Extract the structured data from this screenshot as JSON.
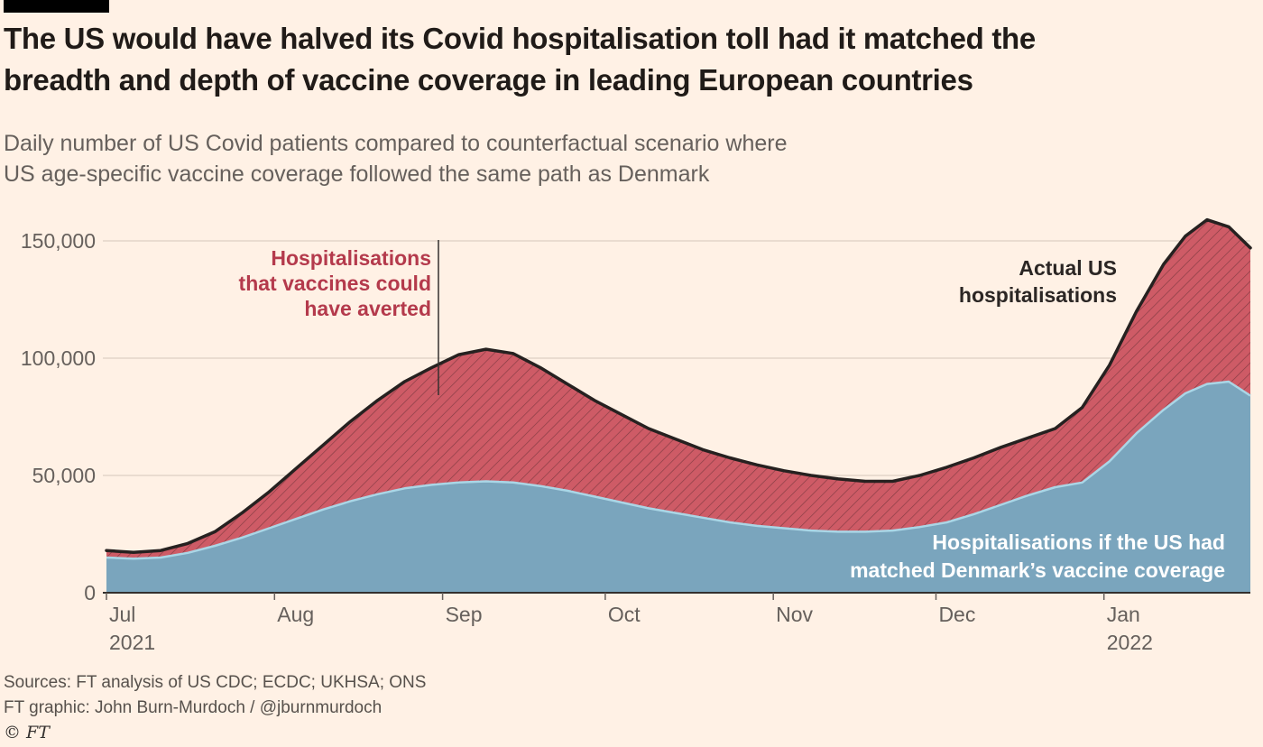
{
  "header": {
    "title_lines": [
      "The US would have halved its Covid hospitalisation toll had it matched the",
      "breadth and depth of vaccine coverage in leading European countries"
    ],
    "subtitle_lines": [
      "Daily number of US Covid patients compared to counterfactual scenario where",
      "US age-specific vaccine coverage followed the same path as Denmark"
    ]
  },
  "chart_data": {
    "type": "area",
    "title": "Daily number of US Covid patients compared to counterfactual scenario where US age-specific vaccine coverage followed the same path as Denmark",
    "x": [
      "2021-07-01",
      "2021-07-06",
      "2021-07-11",
      "2021-07-16",
      "2021-07-21",
      "2021-07-26",
      "2021-07-31",
      "2021-08-05",
      "2021-08-10",
      "2021-08-15",
      "2021-08-20",
      "2021-08-25",
      "2021-08-30",
      "2021-09-04",
      "2021-09-09",
      "2021-09-14",
      "2021-09-19",
      "2021-09-24",
      "2021-09-29",
      "2021-10-04",
      "2021-10-09",
      "2021-10-14",
      "2021-10-19",
      "2021-10-24",
      "2021-10-29",
      "2021-11-03",
      "2021-11-08",
      "2021-11-13",
      "2021-11-18",
      "2021-11-23",
      "2021-11-28",
      "2021-12-03",
      "2021-12-08",
      "2021-12-13",
      "2021-12-18",
      "2021-12-23",
      "2021-12-28",
      "2022-01-02",
      "2022-01-07",
      "2022-01-12",
      "2022-01-16",
      "2022-01-20",
      "2022-01-24",
      "2022-01-28"
    ],
    "series": [
      {
        "name": "Actual US hospitalisations",
        "values": [
          18000,
          17200,
          18000,
          21000,
          26000,
          34000,
          43000,
          53000,
          63000,
          73000,
          82000,
          90000,
          96000,
          101500,
          103800,
          102000,
          96000,
          89000,
          82000,
          76000,
          70000,
          65500,
          61000,
          57500,
          54500,
          52000,
          50000,
          48500,
          47500,
          47500,
          50000,
          53500,
          57500,
          62000,
          66000,
          70000,
          79000,
          97000,
          120000,
          140000,
          152000,
          159000,
          156000,
          147000
        ]
      },
      {
        "name": "Hospitalisations if the US had matched Denmark's vaccine coverage",
        "values": [
          15000,
          14500,
          15000,
          17000,
          20000,
          23500,
          27500,
          31500,
          35500,
          39000,
          42000,
          44500,
          46000,
          47000,
          47500,
          47000,
          45500,
          43500,
          41000,
          38500,
          36000,
          34000,
          32000,
          30000,
          28500,
          27500,
          26500,
          26000,
          26000,
          26500,
          28000,
          30000,
          33500,
          37500,
          41500,
          45000,
          47000,
          56000,
          68000,
          78000,
          85000,
          89000,
          90000,
          84000
        ]
      }
    ],
    "y_axis": {
      "range": [
        0,
        160000
      ],
      "ticks": [
        {
          "value": 0,
          "label": "0"
        },
        {
          "value": 50000,
          "label": "50,000"
        },
        {
          "value": 100000,
          "label": "100,000"
        },
        {
          "value": 150000,
          "label": "150,000"
        }
      ]
    },
    "x_axis": {
      "ticks": [
        {
          "date": "2021-07-01",
          "label": "Jul",
          "year": "2021"
        },
        {
          "date": "2021-08-01",
          "label": "Aug"
        },
        {
          "date": "2021-09-01",
          "label": "Sep"
        },
        {
          "date": "2021-10-01",
          "label": "Oct"
        },
        {
          "date": "2021-11-01",
          "label": "Nov"
        },
        {
          "date": "2021-12-01",
          "label": "Dec"
        },
        {
          "date": "2022-01-01",
          "label": "Jan",
          "year": "2022"
        }
      ]
    },
    "grid": "horizontal",
    "legend_position": "annotations-on-chart",
    "annotations": {
      "averted_lines": [
        "Hospitalisations",
        "that vaccines could",
        "have averted"
      ],
      "actual_lines": [
        "Actual US",
        "hospitalisations"
      ],
      "counterfactual_lines": [
        "Hospitalisations if the US had",
        "matched Denmark’s vaccine coverage"
      ]
    },
    "colors": {
      "background": "#FFF1E5",
      "averted_fill": "#ce5b66",
      "hatch": "#472227",
      "actual_line": "#262120",
      "counterfactual_fill": "#7aa5bd",
      "counterfactual_edge": "#aad6e6",
      "grid": "#d4c7ba",
      "axis": "#33302e",
      "tick": "#66605c",
      "averted_text": "#b43a4c",
      "white_text": "#ffffff"
    }
  },
  "footer": {
    "sources": "Sources: FT analysis of US CDC; ECDC; UKHSA; ONS",
    "credit": "FT graphic: John Burn-Murdoch / @jburnmurdoch",
    "ft_mark": "© FT"
  }
}
